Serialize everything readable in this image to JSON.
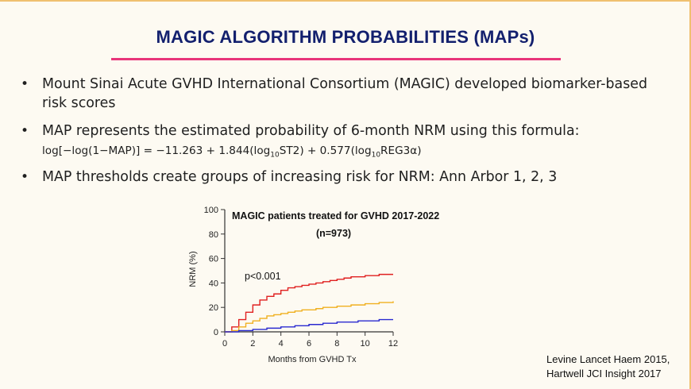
{
  "slide": {
    "title": "MAGIC ALGORITHM PROBABILITIES (MAPs)",
    "bullets": [
      "Mount Sinai Acute GVHD International Consortium (MAGIC) developed biomarker-based risk scores",
      "MAP represents the estimated probability of 6-month NRM using this formula:",
      "MAP thresholds create groups of increasing risk for NRM: Ann Arbor 1, 2, 3"
    ],
    "formula": {
      "part1": "log[−log(1−MAP)] = −11.263 + 1.844(log",
      "sub1": "10",
      "part2": "ST2) + 0.577(log",
      "sub2": "10",
      "part3": "REG3α)"
    },
    "citation_line1": "Levine Lancet Haem 2015,",
    "citation_line2": "Hartwell JCI Insight 2017"
  },
  "chart_data": {
    "type": "line",
    "title": "MAGIC patients treated for GVHD 2017-2022",
    "subtitle": "(n=973)",
    "annotation": "p<0.001",
    "xlabel": "Months from GVHD Tx",
    "ylabel": "NRM (%)",
    "xlim": [
      0,
      12
    ],
    "ylim": [
      0,
      100
    ],
    "xticks": [
      0,
      2,
      4,
      6,
      8,
      10,
      12
    ],
    "yticks": [
      0,
      20,
      40,
      60,
      80,
      100
    ],
    "series": [
      {
        "color": "#e02020",
        "x": [
          0,
          0.5,
          1,
          1.5,
          2,
          2.5,
          3,
          3.5,
          4,
          4.5,
          5,
          5.5,
          6,
          6.5,
          7,
          7.5,
          8,
          8.5,
          9,
          9.5,
          10,
          10.5,
          11,
          11.5,
          12
        ],
        "y": [
          0,
          4,
          10,
          16,
          22,
          26,
          29,
          31,
          34,
          36,
          37,
          38,
          39,
          40,
          41,
          42,
          43,
          44,
          45,
          45,
          46,
          46,
          47,
          47,
          47
        ]
      },
      {
        "color": "#f0b020",
        "x": [
          0,
          0.5,
          1,
          1.5,
          2,
          2.5,
          3,
          3.5,
          4,
          4.5,
          5,
          5.5,
          6,
          6.5,
          7,
          7.5,
          8,
          8.5,
          9,
          9.5,
          10,
          10.5,
          11,
          11.5,
          12
        ],
        "y": [
          0,
          1,
          4,
          7,
          9,
          11,
          13,
          14,
          15,
          16,
          17,
          18,
          18,
          19,
          20,
          20,
          21,
          21,
          22,
          22,
          23,
          23,
          24,
          24,
          25
        ]
      },
      {
        "color": "#2a2ad0",
        "x": [
          0,
          0.5,
          1,
          1.5,
          2,
          2.5,
          3,
          3.5,
          4,
          4.5,
          5,
          5.5,
          6,
          6.5,
          7,
          7.5,
          8,
          8.5,
          9,
          9.5,
          10,
          10.5,
          11,
          11.5,
          12
        ],
        "y": [
          0,
          0,
          1,
          1,
          2,
          2,
          3,
          3,
          4,
          4,
          5,
          5,
          6,
          6,
          7,
          7,
          8,
          8,
          8,
          9,
          9,
          9,
          10,
          10,
          10
        ]
      }
    ]
  }
}
